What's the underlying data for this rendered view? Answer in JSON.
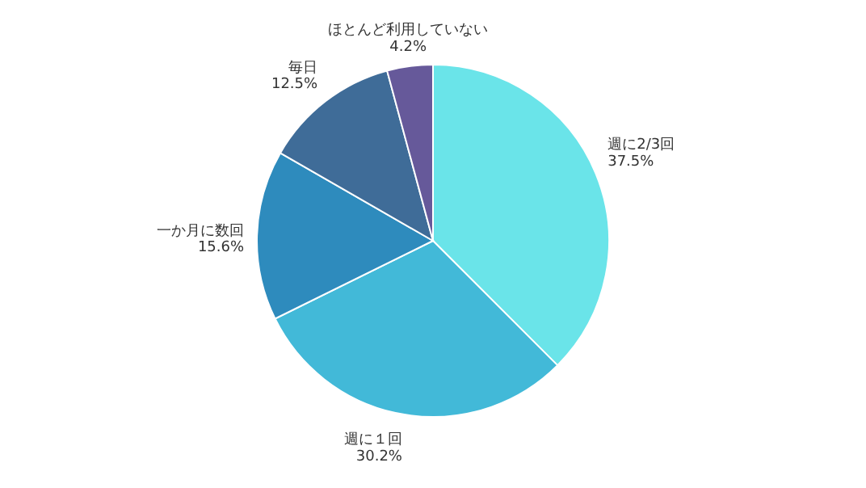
{
  "chart_data": {
    "type": "pie",
    "categories": [
      "週に2/3回",
      "週に１回",
      "一か月に数回",
      "毎日",
      "ほとんど利用していない"
    ],
    "values": [
      37.5,
      30.2,
      15.6,
      12.5,
      4.2
    ],
    "colors": [
      "#6ae4e9",
      "#42b9d8",
      "#2e8bbd",
      "#3f6c98",
      "#66599a"
    ],
    "value_labels": [
      "37.5%",
      "30.2%",
      "15.6%",
      "12.5%",
      "4.2%"
    ]
  }
}
